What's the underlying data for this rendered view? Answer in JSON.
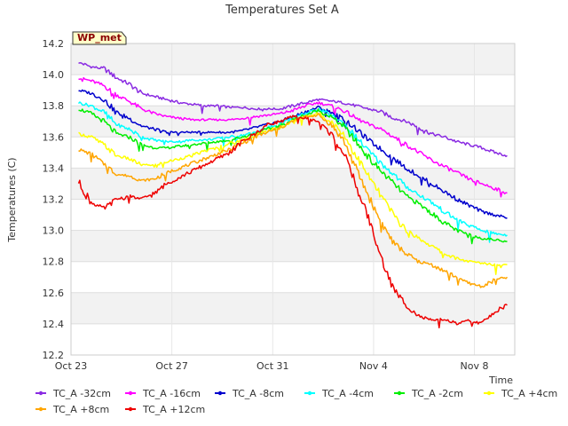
{
  "chart_data": {
    "type": "line",
    "title": "Temperatures Set A",
    "xlabel": "Time",
    "ylabel": "Temperatures (C)",
    "badge": "WP_met",
    "ylim": [
      12.2,
      14.2
    ],
    "yticks": [
      "12.2",
      "12.4",
      "12.6",
      "12.8",
      "13.0",
      "13.2",
      "13.4",
      "13.6",
      "13.8",
      "14.0",
      "14.2"
    ],
    "xlim": [
      0,
      17.6
    ],
    "xticks": [
      {
        "value": 0,
        "label": "Oct 23"
      },
      {
        "value": 4,
        "label": "Oct 27"
      },
      {
        "value": 8,
        "label": "Oct 31"
      },
      {
        "value": 12,
        "label": "Nov 4"
      },
      {
        "value": 16,
        "label": "Nov 8"
      }
    ],
    "grid": true,
    "legend_position": "bottom",
    "x": [
      0.3,
      0.8,
      1.3,
      1.8,
      2.3,
      2.8,
      3.3,
      3.8,
      4.3,
      4.8,
      5.3,
      5.8,
      6.3,
      6.8,
      7.3,
      7.8,
      8.3,
      8.8,
      9.3,
      9.8,
      10.3,
      10.8,
      11.3,
      11.8,
      12.3,
      12.8,
      13.3,
      13.8,
      14.3,
      14.8,
      15.3,
      15.8,
      16.3,
      16.8,
      17.3
    ],
    "series": [
      {
        "name": "TC_A -32cm",
        "color": "#8a2be2",
        "values": [
          14.08,
          14.05,
          14.04,
          13.98,
          13.94,
          13.88,
          13.86,
          13.84,
          13.82,
          13.81,
          13.8,
          13.8,
          13.79,
          13.79,
          13.78,
          13.78,
          13.78,
          13.8,
          13.82,
          13.84,
          13.83,
          13.82,
          13.8,
          13.78,
          13.76,
          13.72,
          13.7,
          13.66,
          13.62,
          13.6,
          13.57,
          13.55,
          13.53,
          13.5,
          13.48
        ]
      },
      {
        "name": "TC_A -16cm",
        "color": "#ff00ff",
        "values": [
          13.98,
          13.96,
          13.93,
          13.87,
          13.83,
          13.78,
          13.75,
          13.73,
          13.72,
          13.71,
          13.71,
          13.71,
          13.71,
          13.72,
          13.73,
          13.74,
          13.75,
          13.77,
          13.8,
          13.82,
          13.8,
          13.77,
          13.72,
          13.68,
          13.65,
          13.6,
          13.55,
          13.5,
          13.45,
          13.41,
          13.37,
          13.33,
          13.3,
          13.27,
          13.24
        ]
      },
      {
        "name": "TC_A -8cm",
        "color": "#0000cd",
        "values": [
          13.9,
          13.88,
          13.84,
          13.76,
          13.72,
          13.67,
          13.65,
          13.63,
          13.63,
          13.63,
          13.63,
          13.63,
          13.63,
          13.64,
          13.66,
          13.68,
          13.7,
          13.73,
          13.76,
          13.79,
          13.76,
          13.72,
          13.65,
          13.58,
          13.52,
          13.46,
          13.4,
          13.35,
          13.3,
          13.25,
          13.2,
          13.16,
          13.12,
          13.1,
          13.08
        ]
      },
      {
        "name": "TC_A -4cm",
        "color": "#00ffff",
        "values": [
          13.82,
          13.8,
          13.76,
          13.68,
          13.65,
          13.6,
          13.58,
          13.57,
          13.57,
          13.58,
          13.58,
          13.59,
          13.6,
          13.61,
          13.63,
          13.66,
          13.68,
          13.72,
          13.75,
          13.78,
          13.74,
          13.69,
          13.6,
          13.51,
          13.43,
          13.36,
          13.28,
          13.23,
          13.18,
          13.12,
          13.07,
          13.03,
          13.0,
          12.98,
          12.97
        ]
      },
      {
        "name": "TC_A -2cm",
        "color": "#00ee00",
        "values": [
          13.78,
          13.75,
          13.7,
          13.62,
          13.6,
          13.55,
          13.53,
          13.53,
          13.54,
          13.55,
          13.56,
          13.57,
          13.58,
          13.6,
          13.62,
          13.65,
          13.67,
          13.71,
          13.74,
          13.77,
          13.73,
          13.67,
          13.57,
          13.47,
          13.38,
          13.3,
          13.22,
          13.17,
          13.11,
          13.05,
          13.0,
          12.97,
          12.95,
          12.94,
          12.93
        ]
      },
      {
        "name": "TC_A +4cm",
        "color": "#ffff00",
        "values": [
          13.62,
          13.6,
          13.55,
          13.48,
          13.46,
          13.42,
          13.42,
          13.44,
          13.46,
          13.48,
          13.51,
          13.53,
          13.56,
          13.58,
          13.61,
          13.64,
          13.66,
          13.7,
          13.73,
          13.75,
          13.7,
          13.62,
          13.48,
          13.35,
          13.22,
          13.1,
          13.0,
          12.95,
          12.9,
          12.85,
          12.82,
          12.8,
          12.79,
          12.78,
          12.78
        ]
      },
      {
        "name": "TC_A +8cm",
        "color": "#ffa500",
        "values": [
          13.52,
          13.49,
          13.43,
          13.36,
          13.35,
          13.32,
          13.33,
          13.37,
          13.4,
          13.43,
          13.46,
          13.49,
          13.52,
          13.56,
          13.6,
          13.63,
          13.66,
          13.7,
          13.73,
          13.74,
          13.68,
          13.58,
          13.4,
          13.22,
          13.05,
          12.92,
          12.85,
          12.8,
          12.78,
          12.74,
          12.7,
          12.66,
          12.64,
          12.68,
          12.7
        ]
      },
      {
        "name": "TC_A +12cm",
        "color": "#ee0000",
        "values": [
          13.31,
          13.18,
          13.14,
          13.2,
          13.22,
          13.2,
          13.24,
          13.3,
          13.34,
          13.38,
          13.42,
          13.46,
          13.5,
          13.57,
          13.62,
          13.68,
          13.7,
          13.73,
          13.72,
          13.7,
          13.62,
          13.5,
          13.3,
          13.08,
          12.82,
          12.62,
          12.52,
          12.45,
          12.42,
          12.43,
          12.4,
          12.42,
          12.4,
          12.48,
          12.52
        ]
      }
    ]
  }
}
